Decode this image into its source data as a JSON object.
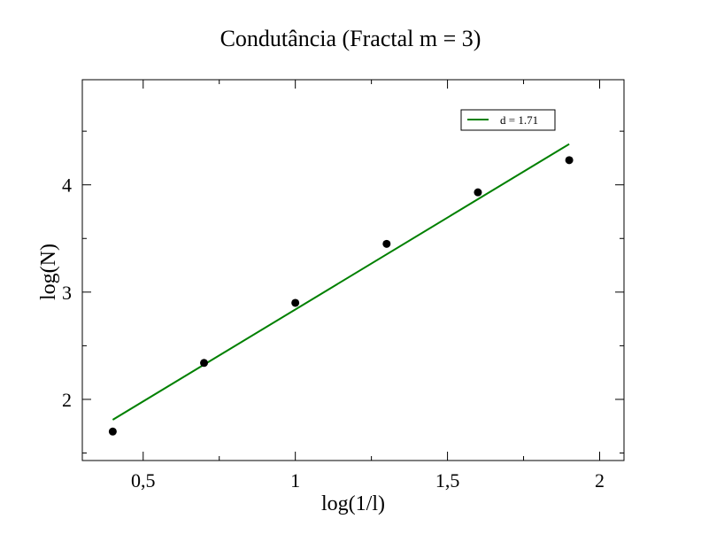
{
  "chart_data": {
    "type": "scatter",
    "title": "Condutância (Fractal m = 3)",
    "xlabel": "log(1/l)",
    "ylabel": "log(N)",
    "xlim": [
      0.3,
      2.08
    ],
    "ylim": [
      1.43,
      4.98
    ],
    "x_ticks": [
      0.5,
      1,
      1.5,
      2
    ],
    "x_tick_labels": [
      "0,5",
      "1",
      "1,5",
      "2"
    ],
    "y_ticks": [
      2,
      3,
      4
    ],
    "y_tick_labels": [
      "2",
      "3",
      "4"
    ],
    "grid": false,
    "legend_position": "top-right",
    "series": [
      {
        "type": "scatter",
        "color": "#000000",
        "x": [
          0.4,
          0.7,
          1.0,
          1.3,
          1.6,
          1.9
        ],
        "y": [
          1.7,
          2.34,
          2.9,
          3.45,
          3.93,
          4.23
        ]
      },
      {
        "type": "line",
        "name": "d = 1.71",
        "color": "#008000",
        "x": [
          0.4,
          1.9
        ],
        "y": [
          1.81,
          4.38
        ]
      }
    ]
  }
}
